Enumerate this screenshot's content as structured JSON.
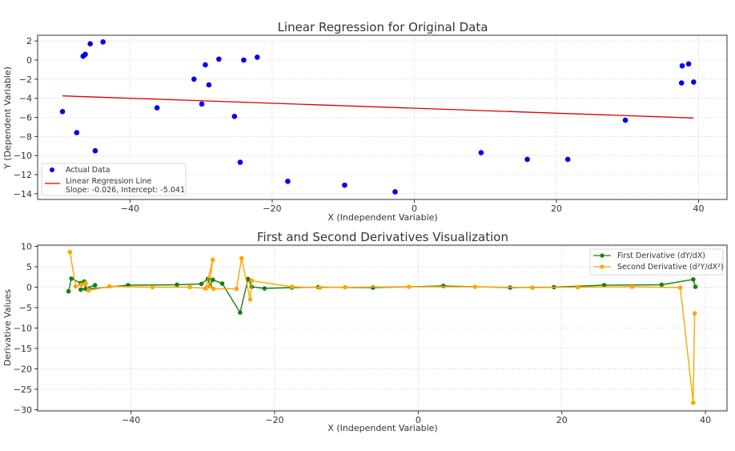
{
  "chart_data": [
    {
      "type": "scatter",
      "title": "Linear Regression for Original Data",
      "xlabel": "X (Independent Variable)",
      "ylabel": "Y (Dependent Variable)",
      "xlim": [
        -53,
        44
      ],
      "ylim": [
        -14.6,
        2.6
      ],
      "xticks": [
        -40,
        -20,
        0,
        20,
        40
      ],
      "yticks": [
        2,
        0,
        -2,
        -4,
        -6,
        -8,
        -10,
        -12,
        -14
      ],
      "grid": true,
      "legend_position": "lower-left",
      "series": [
        {
          "name": "Actual Data",
          "kind": "scatter",
          "color": "#0000ee",
          "points": [
            [
              -49.5,
              -5.4
            ],
            [
              -47.5,
              -7.6
            ],
            [
              -46.6,
              0.4
            ],
            [
              -46.3,
              0.6
            ],
            [
              -45.6,
              1.7
            ],
            [
              -44.9,
              -9.5
            ],
            [
              -43.8,
              1.9
            ],
            [
              -36.2,
              -5.0
            ],
            [
              -31.0,
              -2.0
            ],
            [
              -29.9,
              -4.6
            ],
            [
              -29.4,
              -0.5
            ],
            [
              -28.9,
              -2.6
            ],
            [
              -27.5,
              0.1
            ],
            [
              -25.3,
              -5.9
            ],
            [
              -24.5,
              -10.7
            ],
            [
              -24.0,
              0.0
            ],
            [
              -22.1,
              0.3
            ],
            [
              -17.8,
              -12.7
            ],
            [
              -9.8,
              -13.1
            ],
            [
              -2.7,
              -13.8
            ],
            [
              9.4,
              -9.7
            ],
            [
              15.9,
              -10.4
            ],
            [
              21.6,
              -10.4
            ],
            [
              29.7,
              -6.3
            ],
            [
              37.6,
              -2.4
            ],
            [
              37.7,
              -0.6
            ],
            [
              38.6,
              -0.4
            ],
            [
              39.3,
              -2.3
            ]
          ]
        },
        {
          "name": "Linear Regression Line",
          "kind": "line",
          "color": "#dd0000",
          "points": [
            [
              -49.5,
              -3.754
            ],
            [
              39.3,
              -6.063
            ]
          ]
        }
      ],
      "annotation": "Slope: -0.026, Intercept: -5.041"
    },
    {
      "type": "line",
      "title": "First and Second Derivatives Visualization",
      "xlabel": "X (Independent Variable)",
      "ylabel": "Derivative Values",
      "xlim": [
        -53,
        43
      ],
      "ylim": [
        -30.3,
        10.3
      ],
      "xticks": [
        -40,
        -20,
        0,
        20,
        40
      ],
      "yticks": [
        10,
        5,
        0,
        -5,
        -10,
        -15,
        -20,
        -25,
        -30
      ],
      "grid": true,
      "legend_position": "top-right",
      "series": [
        {
          "name": "First Derivative (dY/dX)",
          "color": "#148014",
          "points": [
            [
              -48.7,
              -1.0
            ],
            [
              -48.3,
              2.1
            ],
            [
              -47.0,
              1.0
            ],
            [
              -46.5,
              1.4
            ],
            [
              -46.3,
              -0.4
            ],
            [
              -45.0,
              0.5
            ],
            [
              -47.0,
              -0.6
            ],
            [
              -40.4,
              0.5
            ],
            [
              -33.6,
              0.6
            ],
            [
              -30.2,
              0.8
            ],
            [
              -29.3,
              2.0
            ],
            [
              -29.0,
              0.3
            ],
            [
              -28.6,
              1.8
            ],
            [
              -27.3,
              0.9
            ],
            [
              -24.8,
              -6.2
            ],
            [
              -23.7,
              2.0
            ],
            [
              -23.2,
              0.1
            ],
            [
              -21.4,
              -0.3
            ],
            [
              -17.6,
              -0.1
            ],
            [
              -13.9,
              0.0
            ],
            [
              -6.3,
              -0.1
            ],
            [
              3.5,
              0.3
            ],
            [
              12.8,
              -0.1
            ],
            [
              18.9,
              0.0
            ],
            [
              25.9,
              0.5
            ],
            [
              33.9,
              0.6
            ],
            [
              38.3,
              1.9
            ],
            [
              38.6,
              0.1
            ]
          ]
        },
        {
          "name": "Second Derivative (d²Y/dX²)",
          "color": "#ffa500",
          "points": [
            [
              -48.5,
              8.6
            ],
            [
              -47.7,
              0.2
            ],
            [
              -46.9,
              0.6
            ],
            [
              -46.3,
              1.0
            ],
            [
              -45.9,
              -0.8
            ],
            [
              -43.0,
              0.2
            ],
            [
              -37.0,
              0.0
            ],
            [
              -31.8,
              0.0
            ],
            [
              -29.6,
              -0.3
            ],
            [
              -28.6,
              6.7
            ],
            [
              -29.1,
              0.2
            ],
            [
              -28.5,
              -0.4
            ],
            [
              -25.3,
              -0.4
            ],
            [
              -24.6,
              7.1
            ],
            [
              -23.4,
              -3.0
            ],
            [
              -23.2,
              1.6
            ],
            [
              -17.6,
              0.1
            ],
            [
              -13.7,
              -0.1
            ],
            [
              -10.2,
              0.0
            ],
            [
              -1.3,
              0.1
            ],
            [
              7.9,
              0.1
            ],
            [
              15.9,
              -0.1
            ],
            [
              22.2,
              0.0
            ],
            [
              29.8,
              0.1
            ],
            [
              36.5,
              -0.1
            ],
            [
              38.3,
              -28.3
            ],
            [
              38.5,
              -6.4
            ]
          ]
        }
      ]
    }
  ]
}
